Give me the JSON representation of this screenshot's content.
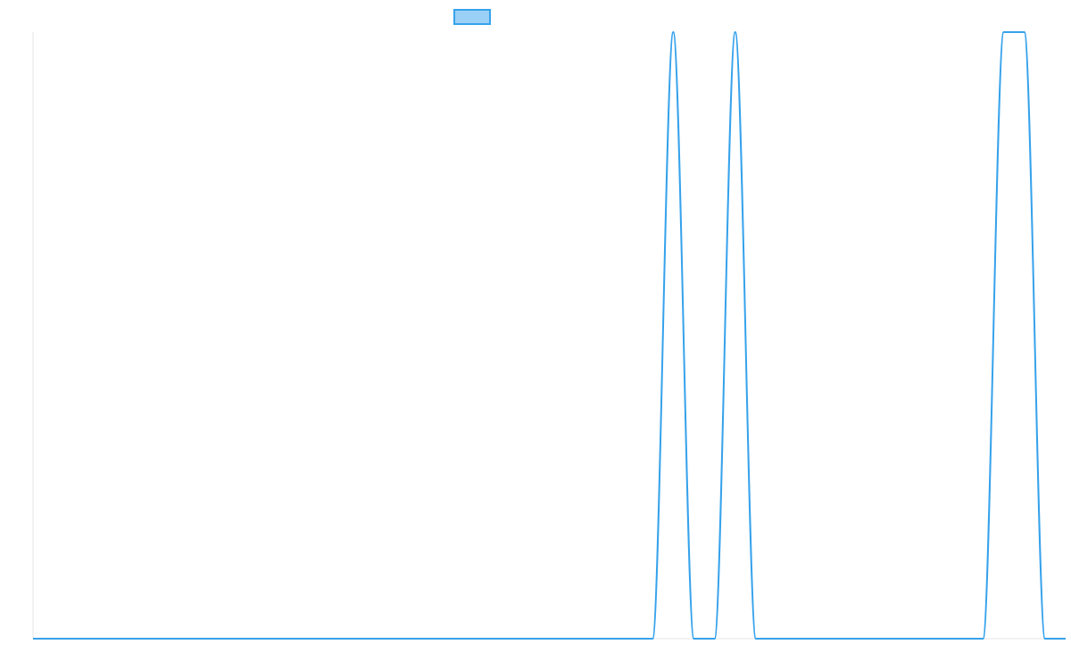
{
  "chart_data": {
    "type": "line",
    "title": "",
    "xlabel": "",
    "ylabel": "",
    "legend": {
      "placement": "top-center",
      "entries": [
        {
          "label": "",
          "color": "#36a2eb",
          "fill": "#9ad0f5"
        }
      ]
    },
    "grid": false,
    "colors": {
      "series": "#36a2eb",
      "series_fill": "#9ad0f5",
      "axis": "#e6e6e6"
    },
    "xlim": [
      0,
      50
    ],
    "ylim": [
      0,
      1
    ],
    "series": [
      {
        "x": [
          0,
          30,
          31,
          32,
          33,
          34,
          35,
          36,
          46,
          47,
          48,
          49,
          50
        ],
        "y": [
          0,
          0,
          1,
          0,
          0,
          1,
          0,
          0,
          0,
          1,
          1,
          0,
          0
        ]
      }
    ]
  }
}
